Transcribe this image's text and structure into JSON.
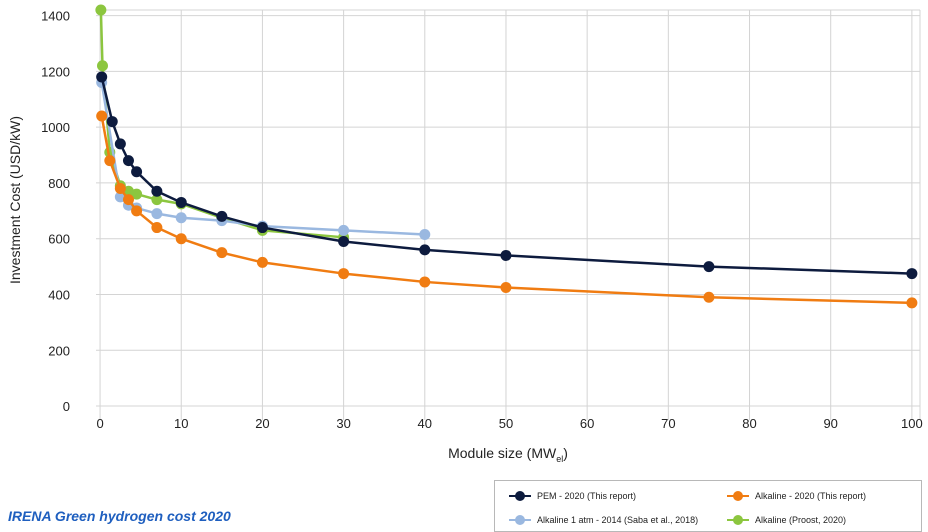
{
  "chart_data": {
    "type": "line",
    "xlabel": "Module size (MW",
    "xlabel_sub": "el",
    "xlabel_close": ")",
    "ylabel": "Investment Cost  (USD/kW)",
    "xlim": [
      -0.5,
      101
    ],
    "ylim": [
      -50,
      1420
    ],
    "xticks": [
      0,
      10,
      20,
      30,
      40,
      50,
      60,
      70,
      80,
      90,
      100
    ],
    "yticks": [
      0,
      200,
      400,
      600,
      800,
      1000,
      1200,
      1400
    ],
    "grid": true,
    "legend_position": "bottom-right",
    "series": [
      {
        "name": "PEM - 2020 (This report)",
        "color": "#0d1b3e",
        "x": [
          0.2,
          1.5,
          2.5,
          3.5,
          4.5,
          7,
          10,
          15,
          20,
          30,
          40,
          50,
          75,
          100
        ],
        "y": [
          1180,
          1020,
          940,
          880,
          840,
          770,
          730,
          680,
          640,
          590,
          560,
          540,
          500,
          475
        ]
      },
      {
        "name": "Alkaline - 2020 (This report)",
        "color": "#f07c12",
        "x": [
          0.2,
          1.2,
          2.5,
          3.5,
          4.5,
          7,
          10,
          15,
          20,
          30,
          40,
          50,
          75,
          100
        ],
        "y": [
          1040,
          880,
          780,
          740,
          700,
          640,
          600,
          550,
          515,
          475,
          445,
          425,
          390,
          370
        ]
      },
      {
        "name": "Alkaline 1 atm - 2014 (Saba et al., 2018)",
        "color": "#9ab8e0",
        "x": [
          0.2,
          2.5,
          3.5,
          4.5,
          7,
          10,
          15,
          20,
          30,
          40
        ],
        "y": [
          1160,
          750,
          720,
          710,
          690,
          675,
          665,
          645,
          630,
          615
        ]
      },
      {
        "name": "Alkaline (Proost, 2020)",
        "color": "#8cc63f",
        "x": [
          0.1,
          0.3,
          1.2,
          2.5,
          3.5,
          4.5,
          7,
          10,
          15,
          20,
          30
        ],
        "y": [
          1420,
          1220,
          910,
          790,
          770,
          760,
          740,
          725,
          675,
          630,
          605
        ]
      }
    ]
  },
  "caption": "IRENA Green hydrogen cost 2020"
}
